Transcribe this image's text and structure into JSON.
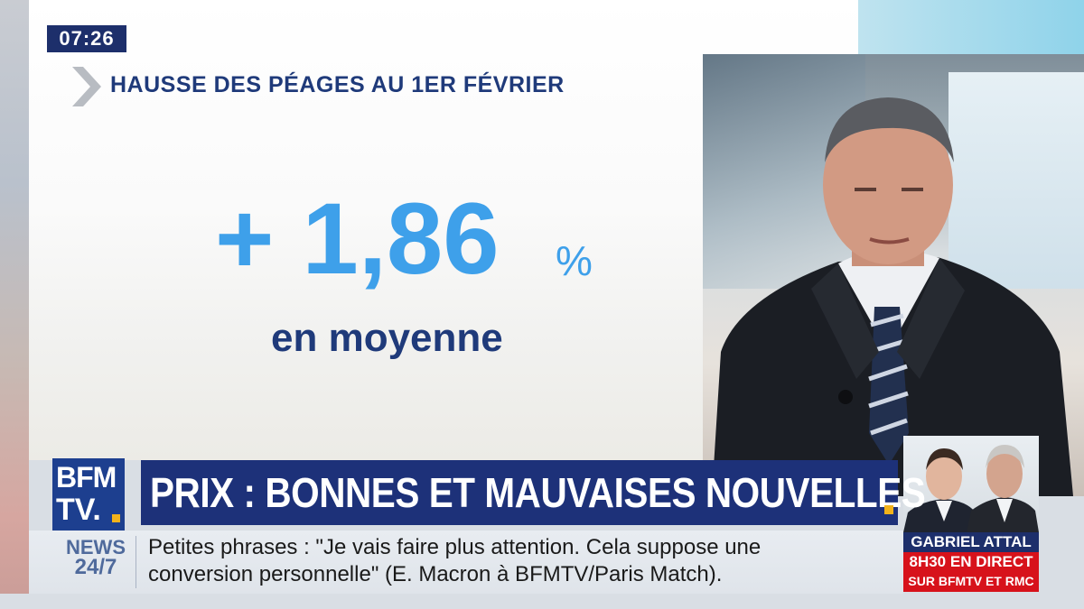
{
  "clock": "07:26",
  "panel": {
    "headline": "HAUSSE DES PÉAGES AU 1ER FÉVRIER",
    "value": "+ 1,86",
    "unit": "%",
    "subtitle": "en moyenne"
  },
  "channel": {
    "logo_line1": "BFM",
    "logo_line2": "TV.",
    "news_label_line1": "NEWS",
    "news_label_line2": "24/7"
  },
  "title_bar": {
    "text": "PRIX : BONNES ET MAUVAISES NOUVELLES"
  },
  "ticker": {
    "line1": "Petites phrases : \"Je vais faire plus attention. Cela suppose une",
    "line2": "conversion personnelle\" (E. Macron à BFMTV/Paris Match)."
  },
  "guest_promo": {
    "name": "GABRIEL ATTAL",
    "time_line": "8H30 EN DIRECT",
    "channels_line": "SUR BFMTV ET RMC"
  },
  "colors": {
    "navy": "#1d3179",
    "accent_blue": "#3ea0ea",
    "red": "#d7121b",
    "yellow": "#f2b21b"
  }
}
